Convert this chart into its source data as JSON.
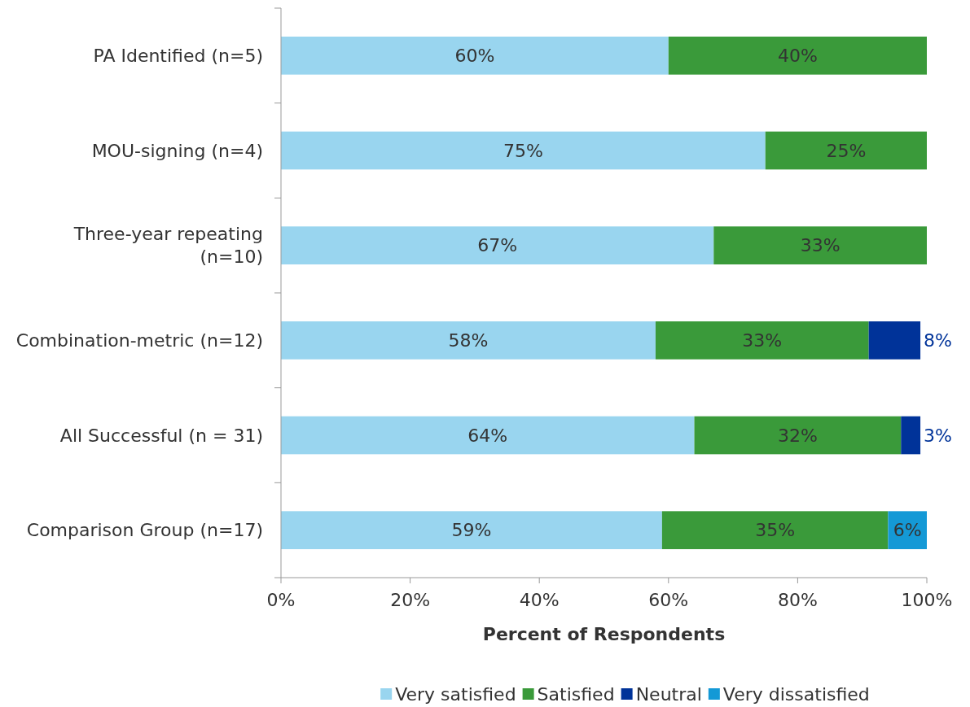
{
  "chart_data": {
    "type": "bar",
    "orientation": "horizontal",
    "stacked": true,
    "categories": [
      "PA Identified (n=5)",
      "MOU-signing (n=4)",
      "Three-year repeating (n=10)",
      "Combination-metric (n=12)",
      "All Successful (n = 31)",
      "Comparison Group (n=17)"
    ],
    "series": [
      {
        "name": "Very satisfied",
        "color": "#99d5ef",
        "values": [
          60,
          75,
          67,
          58,
          64,
          59
        ],
        "value_labels": [
          "60%",
          "75%",
          "67%",
          "58%",
          "64%",
          "59%"
        ]
      },
      {
        "name": "Satisfied",
        "color": "#3a9a3a",
        "values": [
          40,
          25,
          33,
          33,
          32,
          35
        ],
        "value_labels": [
          "40%",
          "25%",
          "33%",
          "33%",
          "32%",
          "35%"
        ]
      },
      {
        "name": "Neutral",
        "color": "#003399",
        "values": [
          null,
          null,
          null,
          8,
          3,
          null
        ],
        "value_labels": [
          null,
          null,
          null,
          "8%",
          "3%",
          null
        ]
      },
      {
        "name": "Very dissatisfied",
        "color": "#1499d6",
        "values": [
          null,
          null,
          null,
          null,
          null,
          6
        ],
        "value_labels": [
          null,
          null,
          null,
          null,
          null,
          "6%"
        ]
      }
    ],
    "xlim": [
      0,
      100
    ],
    "xticks": [
      {
        "value": 0,
        "label": "0%"
      },
      {
        "value": 20,
        "label": "20%"
      },
      {
        "value": 40,
        "label": "40%"
      },
      {
        "value": 60,
        "label": "60%"
      },
      {
        "value": 80,
        "label": "80%"
      },
      {
        "value": 100,
        "label": "100%"
      }
    ],
    "xlabel": "Percent of Respondents",
    "legend": "bottom"
  }
}
